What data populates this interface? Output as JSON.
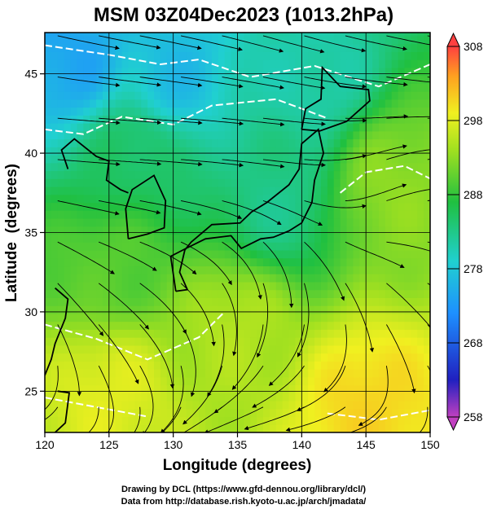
{
  "chart_data": {
    "type": "heatmap",
    "title": "MSM 03Z04Dec2023 (1013.2hPa)",
    "xlabel": "Longitude (degrees)",
    "ylabel": "Latitude  (degrees)",
    "xlim": [
      120,
      150
    ],
    "ylim": [
      22.4,
      47.6
    ],
    "xticks": [
      "120",
      "125",
      "130",
      "135",
      "140",
      "145",
      "150"
    ],
    "yticks": [
      "25",
      "30",
      "35",
      "40",
      "45"
    ],
    "grid": true,
    "overlays": [
      "temperature shading",
      "white isotherm contours",
      "streamlines with arrows",
      "coastlines"
    ],
    "colorbar": {
      "min": 258,
      "max": 308,
      "ticks": [
        "258",
        "268",
        "278",
        "288",
        "298",
        "308"
      ],
      "extend": "both"
    },
    "field_samples": [
      {
        "lon": 122,
        "lat": 46,
        "value": 272
      },
      {
        "lon": 130,
        "lat": 45,
        "value": 274
      },
      {
        "lon": 141,
        "lat": 45,
        "value": 278
      },
      {
        "lon": 127,
        "lat": 40,
        "value": 282
      },
      {
        "lon": 138,
        "lat": 37,
        "value": 280
      },
      {
        "lon": 147,
        "lat": 38,
        "value": 290
      },
      {
        "lon": 125,
        "lat": 33,
        "value": 287
      },
      {
        "lon": 135,
        "lat": 29,
        "value": 292
      },
      {
        "lon": 125,
        "lat": 25,
        "value": 295
      },
      {
        "lon": 145,
        "lat": 24,
        "value": 298
      }
    ]
  },
  "credits": {
    "line1": "Drawing by DCL (https://www.gfd-dennou.org/library/dcl/)",
    "line2": "Data from http://database.rish.kyoto-u.ac.jp/arch/jmadata/"
  }
}
